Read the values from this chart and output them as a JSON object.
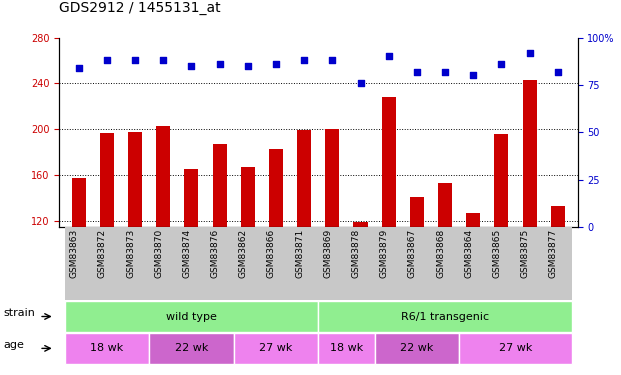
{
  "title": "GDS2912 / 1455131_at",
  "samples": [
    "GSM83863",
    "GSM83872",
    "GSM83873",
    "GSM83870",
    "GSM83874",
    "GSM83876",
    "GSM83862",
    "GSM83866",
    "GSM83871",
    "GSM83869",
    "GSM83878",
    "GSM83879",
    "GSM83867",
    "GSM83868",
    "GSM83864",
    "GSM83865",
    "GSM83875",
    "GSM83877"
  ],
  "counts": [
    158,
    197,
    198,
    203,
    165,
    187,
    167,
    183,
    199,
    200,
    119,
    228,
    141,
    153,
    127,
    196,
    243,
    133
  ],
  "percentiles": [
    84,
    88,
    88,
    88,
    85,
    86,
    85,
    86,
    88,
    88,
    76,
    90,
    82,
    82,
    80,
    86,
    92,
    82
  ],
  "ylim_left": [
    115,
    280
  ],
  "yticks_left": [
    120,
    160,
    200,
    240,
    280
  ],
  "ylim_right": [
    0,
    100
  ],
  "yticks_right": [
    0,
    25,
    50,
    75,
    100
  ],
  "bar_color": "#CC0000",
  "dot_color": "#0000CC",
  "title_fontsize": 10,
  "tick_fontsize": 7,
  "label_fontsize": 8,
  "legend_fontsize": 8,
  "bar_width": 0.5,
  "green_color": "#90EE90",
  "age_light": "#EE82EE",
  "age_dark": "#CC66CC",
  "gray_color": "#C8C8C8",
  "strain_groups": [
    {
      "label": "wild type",
      "start": 0,
      "end": 9
    },
    {
      "label": "R6/1 transgenic",
      "start": 9,
      "end": 18
    }
  ],
  "age_groups": [
    {
      "label": "18 wk",
      "start": 0,
      "end": 3,
      "color": "#EE82EE"
    },
    {
      "label": "22 wk",
      "start": 3,
      "end": 6,
      "color": "#CC66CC"
    },
    {
      "label": "27 wk",
      "start": 6,
      "end": 9,
      "color": "#EE82EE"
    },
    {
      "label": "18 wk",
      "start": 9,
      "end": 11,
      "color": "#EE82EE"
    },
    {
      "label": "22 wk",
      "start": 11,
      "end": 14,
      "color": "#CC66CC"
    },
    {
      "label": "27 wk",
      "start": 14,
      "end": 18,
      "color": "#EE82EE"
    }
  ]
}
